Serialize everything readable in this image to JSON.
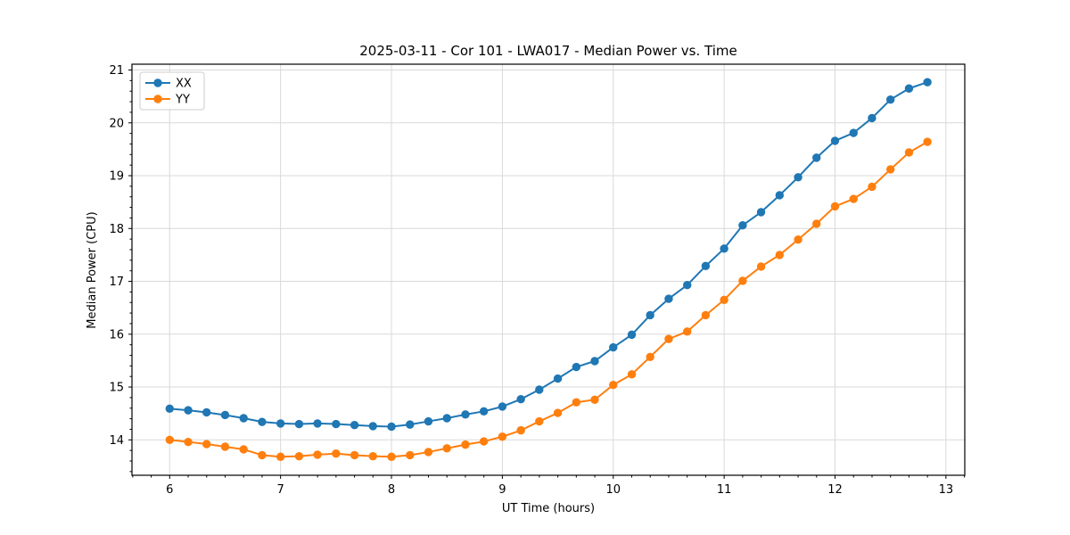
{
  "chart_data": {
    "type": "line",
    "title": "2025-03-11 - Cor 101 - LWA017 - Median Power vs. Time",
    "xlabel": "UT Time (hours)",
    "ylabel": "Median Power (CPU)",
    "xlim": [
      5.66,
      13.17
    ],
    "ylim": [
      13.33,
      21.11
    ],
    "xticks": [
      6,
      7,
      8,
      9,
      10,
      11,
      12,
      13
    ],
    "yticks": [
      14,
      15,
      16,
      17,
      18,
      19,
      20,
      21
    ],
    "x_minor_step": 0.16667,
    "y_minor_step": 0.2,
    "grid": "major-only",
    "legend_position": "upper-left",
    "background_color": "#ffffff",
    "grid_color": "#d9d9d9",
    "x": [
      6.0,
      6.167,
      6.333,
      6.5,
      6.667,
      6.833,
      7.0,
      7.167,
      7.333,
      7.5,
      7.667,
      7.833,
      8.0,
      8.167,
      8.333,
      8.5,
      8.667,
      8.833,
      9.0,
      9.167,
      9.333,
      9.5,
      9.667,
      9.833,
      10.0,
      10.167,
      10.333,
      10.5,
      10.667,
      10.833,
      11.0,
      11.167,
      11.333,
      11.5,
      11.667,
      11.833,
      12.0,
      12.167,
      12.333,
      12.5,
      12.667,
      12.833
    ],
    "series": [
      {
        "name": "XX",
        "color": "#1f77b4",
        "values": [
          14.59,
          14.56,
          14.52,
          14.47,
          14.41,
          14.34,
          14.31,
          14.3,
          14.31,
          14.3,
          14.28,
          14.26,
          14.25,
          14.29,
          14.35,
          14.41,
          14.48,
          14.54,
          14.63,
          14.77,
          14.95,
          15.16,
          15.38,
          15.49,
          15.75,
          15.99,
          16.36,
          16.67,
          16.93,
          17.29,
          17.62,
          18.06,
          18.31,
          18.63,
          18.97,
          19.34,
          19.66,
          19.81,
          20.09,
          20.44,
          20.65,
          20.77
        ]
      },
      {
        "name": "YY",
        "color": "#ff7f0e",
        "values": [
          14.0,
          13.96,
          13.92,
          13.87,
          13.82,
          13.71,
          13.68,
          13.69,
          13.72,
          13.74,
          13.71,
          13.69,
          13.68,
          13.71,
          13.77,
          13.84,
          13.91,
          13.97,
          14.06,
          14.18,
          14.35,
          14.51,
          14.71,
          14.76,
          15.04,
          15.24,
          15.57,
          15.91,
          16.05,
          16.36,
          16.65,
          17.01,
          17.28,
          17.5,
          17.79,
          18.09,
          18.42,
          18.56,
          18.79,
          19.12,
          19.44,
          19.64
        ]
      }
    ]
  }
}
